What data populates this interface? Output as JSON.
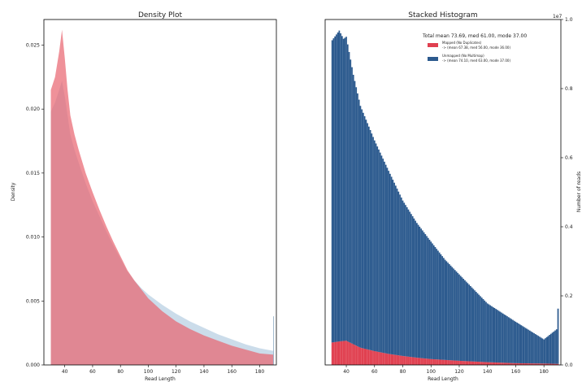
{
  "chart_data": [
    {
      "type": "area",
      "title": "Density Plot",
      "xlabel": "Read Length",
      "ylabel": "Density",
      "xlim": [
        25,
        192
      ],
      "ylim": [
        0,
        0.027
      ],
      "xticks": [
        "40",
        "60",
        "80",
        "100",
        "120",
        "140",
        "160",
        "180"
      ],
      "yticks": [
        "0.000",
        "0.005",
        "0.010",
        "0.015",
        "0.020",
        "0.025"
      ],
      "legend": "none",
      "series": [
        {
          "color": "#e8636e",
          "x": [
            30,
            33,
            36,
            38,
            40,
            42,
            44,
            47,
            50,
            55,
            60,
            65,
            70,
            75,
            80,
            85,
            90,
            95,
            100,
            110,
            120,
            130,
            140,
            150,
            160,
            170,
            180,
            190
          ],
          "y": [
            0.0215,
            0.0225,
            0.0245,
            0.0262,
            0.024,
            0.0215,
            0.0195,
            0.018,
            0.0168,
            0.015,
            0.0135,
            0.0121,
            0.0108,
            0.0096,
            0.0085,
            0.0074,
            0.0066,
            0.0059,
            0.0052,
            0.0042,
            0.0034,
            0.0028,
            0.0023,
            0.0019,
            0.0015,
            0.0012,
            0.0009,
            0.0008
          ]
        },
        {
          "color": "#a8c4dc",
          "x": [
            30,
            33,
            36,
            38,
            40,
            42,
            44,
            47,
            50,
            55,
            60,
            65,
            70,
            75,
            80,
            85,
            90,
            95,
            100,
            110,
            120,
            130,
            140,
            150,
            160,
            170,
            180,
            190
          ],
          "y": [
            0.0198,
            0.0205,
            0.0215,
            0.0222,
            0.021,
            0.0195,
            0.018,
            0.0168,
            0.0158,
            0.0142,
            0.0128,
            0.0116,
            0.0104,
            0.0093,
            0.0083,
            0.0073,
            0.0066,
            0.006,
            0.0055,
            0.0047,
            0.004,
            0.0034,
            0.0029,
            0.0024,
            0.002,
            0.0016,
            0.0013,
            0.0011
          ]
        }
      ]
    },
    {
      "type": "bar",
      "title": "Stacked Histogram",
      "xlabel": "Read Length",
      "ylabel": "Number of reads",
      "y_scale_label": "1e7",
      "xlim": [
        25,
        192
      ],
      "ylim": [
        0,
        1.0
      ],
      "xticks": [
        "40",
        "60",
        "80",
        "100",
        "120",
        "140",
        "160",
        "180"
      ],
      "yticks": [
        "0.0",
        "0.2",
        "0.4",
        "0.6",
        "0.8",
        "1.0"
      ],
      "legend": "top-right",
      "legend_title": "Total mean 73.69, med 61.00, mode 37.00",
      "stacked": true,
      "series": [
        {
          "name": "Mapped (No Duplicates)\n-> (mean 67.38, med 56.00, mode 36.00)",
          "color": "#e04050",
          "x": [
            30,
            35,
            40,
            45,
            50,
            60,
            70,
            80,
            90,
            100,
            120,
            140,
            160,
            180,
            190
          ],
          "y": [
            0.065,
            0.068,
            0.07,
            0.06,
            0.05,
            0.04,
            0.032,
            0.026,
            0.021,
            0.017,
            0.012,
            0.008,
            0.005,
            0.004,
            0.003
          ]
        },
        {
          "name": "Unmapped (No Multimap)\n-> (mean 74.10, med 63.00, mode 37.00)",
          "color": "#2c5a8e",
          "x": [
            30,
            35,
            38,
            40,
            42,
            45,
            50,
            60,
            70,
            80,
            90,
            100,
            110,
            120,
            140,
            160,
            180,
            189,
            190
          ],
          "y": [
            0.875,
            0.9,
            0.875,
            0.88,
            0.84,
            0.78,
            0.7,
            0.61,
            0.53,
            0.45,
            0.39,
            0.34,
            0.29,
            0.25,
            0.17,
            0.12,
            0.07,
            0.1,
            0.16
          ]
        }
      ]
    }
  ]
}
